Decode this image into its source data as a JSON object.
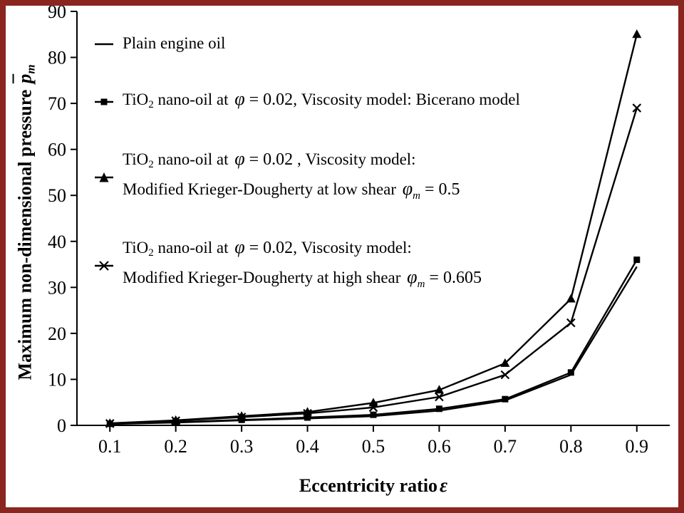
{
  "colors": {
    "border": "#8b2520",
    "line": "#000000",
    "background": "#ffffff"
  },
  "axes": {
    "ylabel_text": "Maximum non-dimensional pressure ",
    "ylabel_symbol": "p",
    "ylabel_subscript": "m",
    "xlabel_text": "Eccentricity ratio",
    "xlabel_symbol": "ε"
  },
  "chart_data": {
    "type": "line",
    "title": "",
    "xlabel": "Eccentricity ratio ε",
    "ylabel": "Maximum non-dimensional pressure p̄m",
    "grid": false,
    "legend_position": "upper-left",
    "xlim": [
      0.05,
      0.95
    ],
    "ylim": [
      0,
      90
    ],
    "x_ticks": [
      0.1,
      0.2,
      0.3,
      0.4,
      0.5,
      0.6,
      0.7,
      0.8,
      0.9
    ],
    "y_ticks": [
      0,
      10,
      20,
      30,
      40,
      50,
      60,
      70,
      80,
      90
    ],
    "x": [
      0.1,
      0.2,
      0.3,
      0.4,
      0.5,
      0.6,
      0.7,
      0.8,
      0.9
    ],
    "series": [
      {
        "id": "plain-engine-oil",
        "name": "Plain engine oil",
        "marker": "none",
        "values": [
          0.3,
          0.6,
          1.1,
          1.5,
          2.0,
          3.2,
          5.4,
          11.0,
          34.5
        ]
      },
      {
        "id": "bicerano",
        "name": "TiO2 nano-oil at φ = 0.02, Viscosity model: Bicerano model",
        "marker": "square",
        "values": [
          0.35,
          0.7,
          1.2,
          1.7,
          2.3,
          3.6,
          5.7,
          11.5,
          36.0
        ]
      },
      {
        "id": "krieger-dougherty-low-shear",
        "name": "TiO2 nano-oil at φ = 0.02, Viscosity model: Modified Krieger-Dougherty at low shear φm = 0.5",
        "marker": "triangle",
        "values": [
          0.45,
          1.1,
          2.0,
          2.9,
          4.9,
          7.7,
          13.5,
          27.5,
          85.0
        ]
      },
      {
        "id": "krieger-dougherty-high-shear",
        "name": "TiO2 nano-oil at φ = 0.02, Viscosity model: Modified Krieger-Dougherty at high shear φm = 0.605",
        "marker": "x",
        "values": [
          0.4,
          1.0,
          1.8,
          2.6,
          3.9,
          6.2,
          11.0,
          22.3,
          69.0
        ]
      }
    ]
  },
  "legend": {
    "entries": [
      {
        "marker": "line",
        "lines": [
          [
            {
              "t": "Plain engine oil",
              "s": "n"
            }
          ]
        ]
      },
      {
        "marker": "square",
        "lines": [
          [
            {
              "t": "TiO",
              "s": "n"
            },
            {
              "t": "2",
              "s": "sub"
            },
            {
              "t": " nano-oil at ",
              "s": "n"
            },
            {
              "t": "φ",
              "s": "m"
            },
            {
              "t": " = 0.02",
              "s": "mn"
            },
            {
              "t": ", Viscosity model: Bicerano model",
              "s": "n"
            }
          ]
        ]
      },
      {
        "marker": "triangle",
        "lines": [
          [
            {
              "t": "TiO",
              "s": "n"
            },
            {
              "t": "2",
              "s": "sub"
            },
            {
              "t": " nano-oil at ",
              "s": "n"
            },
            {
              "t": "φ",
              "s": "m"
            },
            {
              "t": " = 0.02",
              "s": "mn"
            },
            {
              "t": " , Viscosity model:",
              "s": "n"
            }
          ],
          [
            {
              "t": "Modified Krieger-Dougherty at low shear ",
              "s": "n"
            },
            {
              "t": "φ",
              "s": "m"
            },
            {
              "t": "m",
              "s": "msub"
            },
            {
              "t": " = 0.5",
              "s": "mn"
            }
          ]
        ]
      },
      {
        "marker": "x",
        "lines": [
          [
            {
              "t": "TiO",
              "s": "n"
            },
            {
              "t": "2",
              "s": "sub"
            },
            {
              "t": " nano-oil at ",
              "s": "n"
            },
            {
              "t": "φ",
              "s": "m"
            },
            {
              "t": " = 0.02",
              "s": "mn"
            },
            {
              "t": ", Viscosity model:",
              "s": "n"
            }
          ],
          [
            {
              "t": "Modified Krieger-Dougherty at high shear ",
              "s": "n"
            },
            {
              "t": "φ",
              "s": "m"
            },
            {
              "t": "m",
              "s": "msub"
            },
            {
              "t": " = 0.605",
              "s": "mn"
            }
          ]
        ]
      }
    ]
  }
}
